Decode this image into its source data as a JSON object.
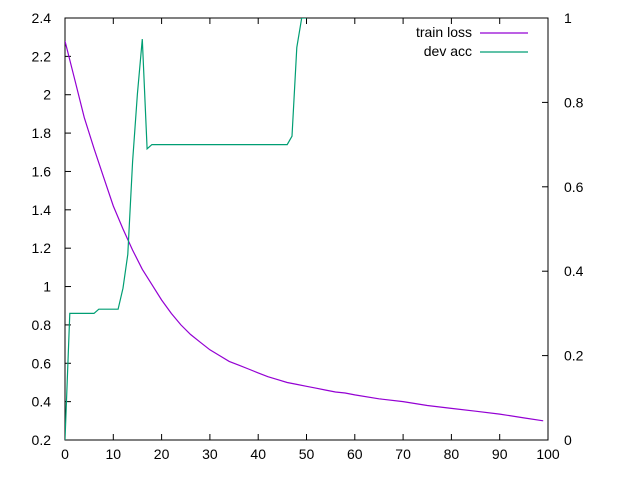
{
  "chart_data": {
    "type": "line",
    "title": "",
    "xlabel": "",
    "ylabel": "",
    "y2label": "",
    "xlim": [
      0,
      100
    ],
    "ylim": [
      0.2,
      2.4
    ],
    "y2lim": [
      0,
      1
    ],
    "x_ticks": [
      0,
      10,
      20,
      30,
      40,
      50,
      60,
      70,
      80,
      90,
      100
    ],
    "y_ticks": [
      0.2,
      0.4,
      0.6,
      0.8,
      1,
      1.2,
      1.4,
      1.6,
      1.8,
      2,
      2.2,
      2.4
    ],
    "y2_ticks": [
      0,
      0.2,
      0.4,
      0.6,
      0.8,
      1
    ],
    "x_tick_labels": [
      "0",
      "10",
      "20",
      "30",
      "40",
      "50",
      "60",
      "70",
      "80",
      "90",
      "100"
    ],
    "y_tick_labels": [
      "0.2",
      "0.4",
      "0.6",
      "0.8",
      "1",
      "1.2",
      "1.4",
      "1.6",
      "1.8",
      "2",
      "2.2",
      "2.4"
    ],
    "y2_tick_labels": [
      "0",
      "0.2",
      "0.4",
      "0.6",
      "0.8",
      "1"
    ],
    "grid": false,
    "legend_position": "top-right",
    "series": [
      {
        "name": "train loss",
        "axis": "y",
        "color": "#9400d3",
        "x": [
          0,
          2,
          4,
          6,
          8,
          10,
          12,
          14,
          16,
          18,
          20,
          22,
          24,
          26,
          28,
          30,
          32,
          34,
          36,
          38,
          40,
          42,
          44,
          46,
          48,
          50,
          52,
          54,
          56,
          58,
          60,
          65,
          70,
          75,
          80,
          85,
          90,
          95,
          99
        ],
        "values": [
          2.28,
          2.08,
          1.88,
          1.72,
          1.57,
          1.42,
          1.3,
          1.19,
          1.09,
          1.01,
          0.93,
          0.86,
          0.8,
          0.75,
          0.71,
          0.67,
          0.64,
          0.61,
          0.59,
          0.57,
          0.55,
          0.53,
          0.515,
          0.5,
          0.49,
          0.48,
          0.47,
          0.46,
          0.45,
          0.445,
          0.435,
          0.415,
          0.4,
          0.38,
          0.365,
          0.35,
          0.335,
          0.315,
          0.3
        ]
      },
      {
        "name": "dev acc",
        "axis": "y2",
        "color": "#009e73",
        "x": [
          0,
          1,
          2,
          3,
          4,
          5,
          6,
          7,
          8,
          9,
          10,
          11,
          12,
          13,
          14,
          15,
          16,
          17,
          18,
          19,
          20,
          25,
          30,
          35,
          40,
          44,
          45,
          46,
          47,
          48,
          49,
          50
        ],
        "values": [
          0.0,
          0.3,
          0.3,
          0.3,
          0.3,
          0.3,
          0.3,
          0.31,
          0.31,
          0.31,
          0.31,
          0.31,
          0.36,
          0.44,
          0.66,
          0.82,
          0.95,
          0.69,
          0.7,
          0.7,
          0.7,
          0.7,
          0.7,
          0.7,
          0.7,
          0.7,
          0.7,
          0.7,
          0.72,
          0.93,
          1.0,
          1.0
        ]
      }
    ]
  }
}
